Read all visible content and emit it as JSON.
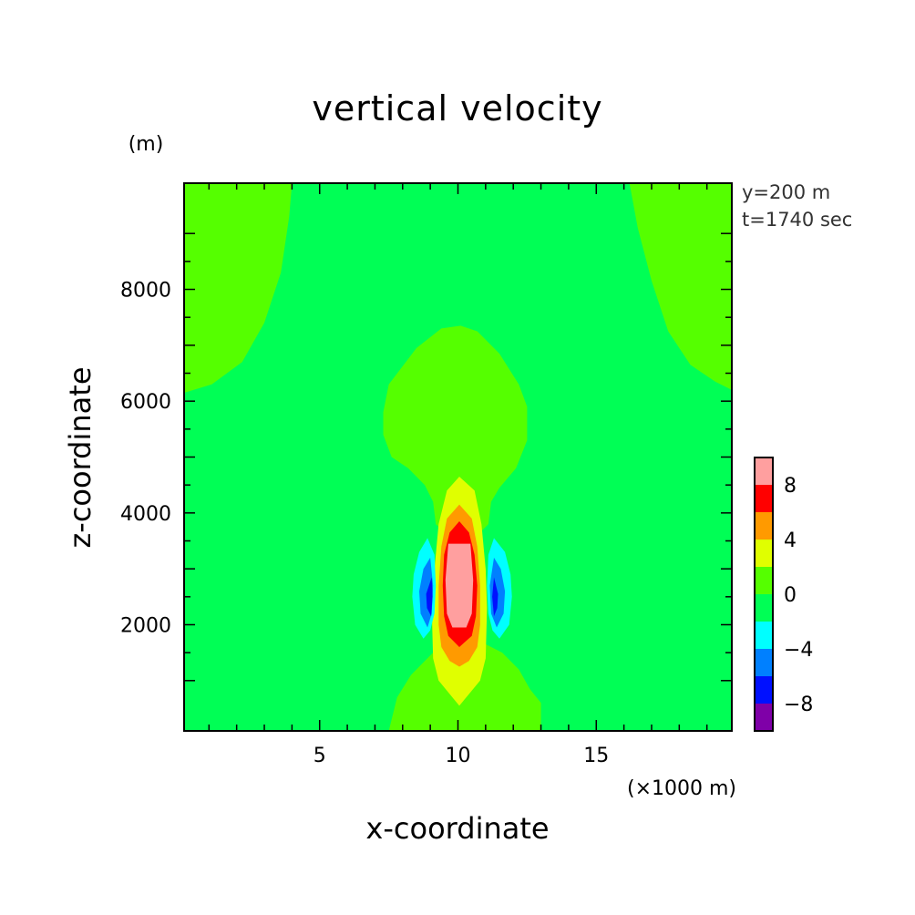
{
  "chart_data": {
    "type": "contour",
    "title": "vertical velocity",
    "xlabel": "x-coordinate",
    "ylabel": "z-coordinate",
    "x_unit": "(×1000 m)",
    "y_unit": "(m)",
    "annotations": [
      "y=200 m",
      "t=1740 sec"
    ],
    "xlim": [
      0.1,
      19.9
    ],
    "ylim": [
      100,
      9900
    ],
    "x_ticks": [
      5,
      10,
      15
    ],
    "y_ticks": [
      2000,
      4000,
      6000,
      8000
    ],
    "colorbar": {
      "levels": [
        -10,
        -8,
        -6,
        -4,
        -2,
        0,
        2,
        4,
        6,
        8,
        10
      ],
      "labels": [
        -8,
        -4,
        0,
        4,
        8
      ],
      "colors": [
        "#7f00a8",
        "#0010ff",
        "#0080ff",
        "#00ffff",
        "#00ff55",
        "#55ff00",
        "#e0ff00",
        "#ff9a00",
        "#ff0000",
        "#ff9f9f"
      ]
    },
    "background_color": "#00ff55",
    "regions": [
      {
        "level": "0 to 2",
        "color": "#55ff00",
        "points": [
          [
            0.1,
            9900
          ],
          [
            4,
            9900
          ],
          [
            3.9,
            9300
          ],
          [
            3.6,
            8300
          ],
          [
            3,
            7400
          ],
          [
            2.2,
            6700
          ],
          [
            1.1,
            6300
          ],
          [
            0.1,
            6150
          ]
        ]
      },
      {
        "level": "0 to 2",
        "color": "#55ff00",
        "points": [
          [
            16.2,
            9900
          ],
          [
            19.9,
            9900
          ],
          [
            19.9,
            6200
          ],
          [
            19.3,
            6350
          ],
          [
            18.4,
            6650
          ],
          [
            17.6,
            7250
          ],
          [
            17,
            8150
          ],
          [
            16.5,
            9100
          ]
        ]
      },
      {
        "level": "0 to 2",
        "color": "#55ff00",
        "points": [
          [
            10.1,
            7350
          ],
          [
            10.7,
            7250
          ],
          [
            11.5,
            6850
          ],
          [
            12.2,
            6300
          ],
          [
            12.5,
            5900
          ],
          [
            12.5,
            5300
          ],
          [
            12.1,
            4800
          ],
          [
            11.5,
            4450
          ],
          [
            11.2,
            4200
          ],
          [
            11.1,
            3800
          ],
          [
            10.5,
            3500
          ],
          [
            9.8,
            3500
          ],
          [
            9.2,
            3800
          ],
          [
            9.1,
            4200
          ],
          [
            8.8,
            4500
          ],
          [
            8.2,
            4800
          ],
          [
            7.6,
            5000
          ],
          [
            7.3,
            5400
          ],
          [
            7.3,
            5800
          ],
          [
            7.5,
            6300
          ],
          [
            8.5,
            6950
          ],
          [
            9.4,
            7300
          ]
        ]
      },
      {
        "level": "0 to 2",
        "color": "#55ff00",
        "points": [
          [
            7.5,
            100
          ],
          [
            7.8,
            700
          ],
          [
            8.3,
            1100
          ],
          [
            8.9,
            1400
          ],
          [
            9.4,
            1650
          ],
          [
            10.2,
            1400
          ],
          [
            11,
            1650
          ],
          [
            11.6,
            1500
          ],
          [
            12.2,
            1200
          ],
          [
            12.6,
            850
          ],
          [
            13,
            600
          ],
          [
            13,
            100
          ]
        ]
      },
      {
        "level": "2 to 4",
        "color": "#e0ff00",
        "points": [
          [
            10.05,
            4650
          ],
          [
            10.6,
            4400
          ],
          [
            10.85,
            3800
          ],
          [
            11,
            3000
          ],
          [
            11.05,
            2300
          ],
          [
            11,
            1400
          ],
          [
            10.8,
            1000
          ],
          [
            10.05,
            550
          ],
          [
            9.3,
            1000
          ],
          [
            9.1,
            1400
          ],
          [
            9.05,
            2300
          ],
          [
            9.15,
            3000
          ],
          [
            9.3,
            3800
          ],
          [
            9.6,
            4400
          ]
        ]
      },
      {
        "level": "4 to 6",
        "color": "#ff9a00",
        "points": [
          [
            10.05,
            4150
          ],
          [
            10.5,
            3900
          ],
          [
            10.7,
            3400
          ],
          [
            10.8,
            2700
          ],
          [
            10.8,
            2000
          ],
          [
            10.7,
            1600
          ],
          [
            10.4,
            1350
          ],
          [
            10.05,
            1250
          ],
          [
            9.7,
            1350
          ],
          [
            9.4,
            1600
          ],
          [
            9.3,
            2000
          ],
          [
            9.3,
            2700
          ],
          [
            9.4,
            3400
          ],
          [
            9.6,
            3900
          ]
        ]
      },
      {
        "level": "6 to 8",
        "color": "#ff0000",
        "points": [
          [
            10.05,
            3850
          ],
          [
            10.4,
            3650
          ],
          [
            10.6,
            3250
          ],
          [
            10.7,
            2700
          ],
          [
            10.65,
            2150
          ],
          [
            10.5,
            1800
          ],
          [
            10.05,
            1600
          ],
          [
            9.65,
            1800
          ],
          [
            9.5,
            2150
          ],
          [
            9.45,
            2700
          ],
          [
            9.5,
            3250
          ],
          [
            9.7,
            3650
          ]
        ]
      },
      {
        "level": "8 to 10",
        "color": "#ff9f9f",
        "points": [
          [
            9.65,
            3450
          ],
          [
            10.45,
            3450
          ],
          [
            10.55,
            2800
          ],
          [
            10.5,
            2200
          ],
          [
            10.3,
            1950
          ],
          [
            9.8,
            1950
          ],
          [
            9.6,
            2200
          ],
          [
            9.55,
            2800
          ]
        ]
      },
      {
        "level": "-4 to -2",
        "color": "#00ffff",
        "points": [
          [
            8.9,
            3550
          ],
          [
            9.15,
            3250
          ],
          [
            9.2,
            2700
          ],
          [
            9.15,
            2200
          ],
          [
            9,
            1900
          ],
          [
            8.75,
            1750
          ],
          [
            8.45,
            2000
          ],
          [
            8.35,
            2500
          ],
          [
            8.4,
            2900
          ],
          [
            8.6,
            3300
          ]
        ]
      },
      {
        "level": "-6 to -4",
        "color": "#0080ff",
        "points": [
          [
            9,
            3200
          ],
          [
            9.1,
            2700
          ],
          [
            9.05,
            2200
          ],
          [
            8.9,
            1950
          ],
          [
            8.65,
            2200
          ],
          [
            8.6,
            2600
          ],
          [
            8.75,
            3000
          ]
        ]
      },
      {
        "level": "-8 to -6",
        "color": "#0010ff",
        "points": [
          [
            9.05,
            2850
          ],
          [
            9.08,
            2500
          ],
          [
            9.03,
            2150
          ],
          [
            8.88,
            2300
          ],
          [
            8.85,
            2550
          ]
        ]
      },
      {
        "level": "-4 to -2",
        "color": "#00ffff",
        "points": [
          [
            11.3,
            3550
          ],
          [
            11.7,
            3300
          ],
          [
            11.9,
            2900
          ],
          [
            11.95,
            2500
          ],
          [
            11.85,
            2000
          ],
          [
            11.5,
            1750
          ],
          [
            11.25,
            1900
          ],
          [
            11.1,
            2200
          ],
          [
            11.05,
            2700
          ],
          [
            11.1,
            3250
          ]
        ]
      },
      {
        "level": "-6 to -4",
        "color": "#0080ff",
        "points": [
          [
            11.3,
            3200
          ],
          [
            11.55,
            3000
          ],
          [
            11.7,
            2600
          ],
          [
            11.65,
            2200
          ],
          [
            11.4,
            1950
          ],
          [
            11.2,
            2200
          ],
          [
            11.15,
            2700
          ]
        ]
      },
      {
        "level": "-8 to -6",
        "color": "#0010ff",
        "points": [
          [
            11.3,
            2850
          ],
          [
            11.45,
            2550
          ],
          [
            11.42,
            2300
          ],
          [
            11.3,
            2150
          ],
          [
            11.24,
            2500
          ]
        ]
      }
    ]
  }
}
